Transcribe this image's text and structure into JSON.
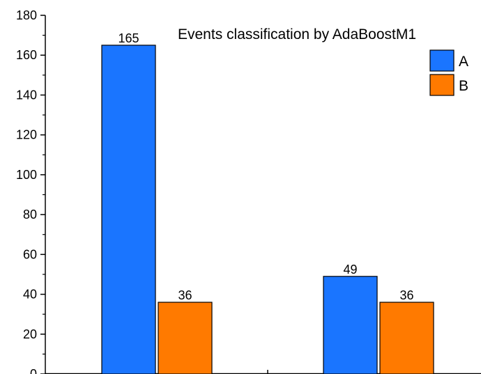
{
  "chart_data": {
    "type": "bar",
    "title": "Events classification by AdaBoostM1",
    "xlabel": "",
    "ylabel": "",
    "categories": [
      "",
      ""
    ],
    "series": [
      {
        "name": "A",
        "values": [
          165,
          49
        ],
        "color": "#1a75ff"
      },
      {
        "name": "B",
        "values": [
          36,
          36
        ],
        "color": "#ff7a00"
      }
    ],
    "data_labels": [
      [
        "165",
        "49"
      ],
      [
        "36",
        "36"
      ]
    ],
    "ylim": [
      0,
      180
    ],
    "yticks": [
      0,
      20,
      40,
      60,
      80,
      100,
      120,
      140,
      160,
      180
    ],
    "ytick_labels": [
      "0",
      "20",
      "40",
      "60",
      "80",
      "100",
      "120",
      "140",
      "160",
      "180"
    ],
    "grid": false,
    "legend_position": "top-right"
  }
}
